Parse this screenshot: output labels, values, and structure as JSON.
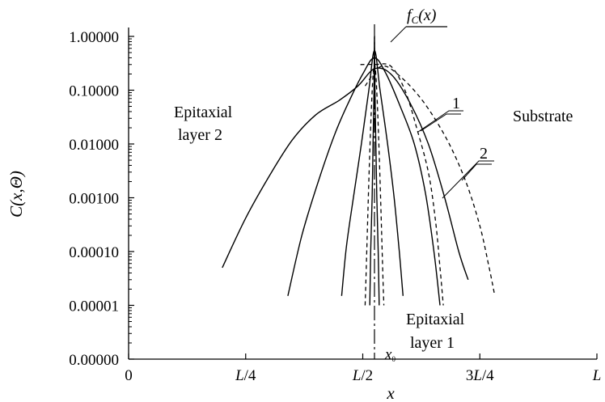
{
  "chart_data": {
    "type": "line",
    "xlabel": "x",
    "ylabel": "C(x,Θ)",
    "yscale": "log",
    "x_ticks": [
      {
        "value": 0,
        "label": "0"
      },
      {
        "value": 0.25,
        "label": "L/4"
      },
      {
        "value": 0.5,
        "label": "L/2"
      },
      {
        "value": 0.75,
        "label": "3L/4"
      },
      {
        "value": 1.0,
        "label": "L"
      }
    ],
    "x0": {
      "value": 0.525,
      "label": "x₀"
    },
    "y_ticks": [
      {
        "value": 1,
        "label": "1.00000"
      },
      {
        "value": 0.1,
        "label": "0.10000"
      },
      {
        "value": 0.01,
        "label": "0.01000"
      },
      {
        "value": 0.001,
        "label": "0.00100"
      },
      {
        "value": 0.0001,
        "label": "0.00010"
      },
      {
        "value": 1e-05,
        "label": "0.00001"
      },
      {
        "value": 1e-06,
        "label": "0.00000"
      }
    ],
    "xlim": [
      0,
      1.0
    ],
    "ylim": [
      1e-06,
      1.5
    ],
    "annotations": {
      "fc": "f",
      "fc_sub": "C",
      "fc_arg": "(x)",
      "label_1": "1",
      "label_2": "2",
      "substrate": "Substrate",
      "epi2_line1": "Epitaxial",
      "epi2_line2": "layer 2",
      "epi1_line1": "Epitaxial",
      "epi1_line2": "layer 1"
    },
    "series": [
      {
        "style": "solid",
        "points": [
          [
            0.515,
            1e-05
          ],
          [
            0.517,
            0.0001
          ],
          [
            0.52,
            0.001
          ],
          [
            0.522,
            0.01
          ],
          [
            0.524,
            0.1
          ],
          [
            0.525,
            1.0
          ],
          [
            0.526,
            0.1
          ],
          [
            0.528,
            0.01
          ],
          [
            0.53,
            0.001
          ],
          [
            0.533,
            0.0001
          ],
          [
            0.535,
            1e-05
          ]
        ]
      },
      {
        "style": "solid",
        "points": [
          [
            0.455,
            1.5e-05
          ],
          [
            0.465,
            0.00012
          ],
          [
            0.48,
            0.001
          ],
          [
            0.497,
            0.01
          ],
          [
            0.513,
            0.1
          ],
          [
            0.525,
            0.55
          ],
          [
            0.537,
            0.1
          ],
          [
            0.553,
            0.01
          ],
          [
            0.567,
            0.001
          ],
          [
            0.578,
            0.0001
          ],
          [
            0.586,
            1.5e-05
          ]
        ]
      },
      {
        "style": "solid",
        "points": [
          [
            0.34,
            1.5e-05
          ],
          [
            0.37,
            0.0002
          ],
          [
            0.405,
            0.002
          ],
          [
            0.44,
            0.015
          ],
          [
            0.47,
            0.06
          ],
          [
            0.5,
            0.2
          ],
          [
            0.525,
            0.4
          ],
          [
            0.55,
            0.2
          ],
          [
            0.58,
            0.05
          ],
          [
            0.61,
            0.01
          ],
          [
            0.634,
            0.0012
          ],
          [
            0.652,
            0.0001
          ],
          [
            0.665,
            1e-05
          ]
        ]
      },
      {
        "style": "solid",
        "points": [
          [
            0.2,
            5e-05
          ],
          [
            0.25,
            0.00042
          ],
          [
            0.3,
            0.0025
          ],
          [
            0.35,
            0.012
          ],
          [
            0.4,
            0.035
          ],
          [
            0.45,
            0.065
          ],
          [
            0.49,
            0.12
          ],
          [
            0.525,
            0.25
          ],
          [
            0.56,
            0.2
          ],
          [
            0.6,
            0.06
          ],
          [
            0.64,
            0.01
          ],
          [
            0.675,
            0.001
          ],
          [
            0.705,
            0.0001
          ],
          [
            0.725,
            3e-05
          ]
        ]
      },
      {
        "style": "dash",
        "points": [
          [
            0.495,
            0.3
          ],
          [
            0.525,
            0.3
          ],
          [
            0.56,
            0.28
          ],
          [
            0.59,
            0.1
          ],
          [
            0.615,
            0.02
          ],
          [
            0.64,
            0.003
          ],
          [
            0.655,
            0.0004
          ],
          [
            0.665,
            5e-05
          ],
          [
            0.672,
            1e-05
          ]
        ]
      },
      {
        "style": "dash",
        "points": [
          [
            0.505,
            0.12
          ],
          [
            0.54,
            0.28
          ],
          [
            0.58,
            0.18
          ],
          [
            0.63,
            0.06
          ],
          [
            0.68,
            0.012
          ],
          [
            0.72,
            0.002
          ],
          [
            0.75,
            0.0003
          ],
          [
            0.77,
            5e-05
          ],
          [
            0.782,
            1.5e-05
          ]
        ]
      },
      {
        "style": "dash",
        "points": [
          [
            0.505,
            1e-05
          ],
          [
            0.525,
            0.3
          ],
          [
            0.545,
            1e-05
          ]
        ]
      }
    ]
  }
}
